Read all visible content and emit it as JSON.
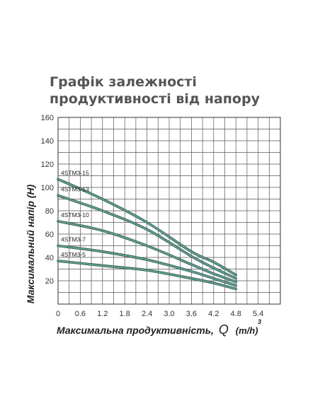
{
  "chart_data": {
    "type": "line",
    "title": "Графік залежності продуктивності від напору",
    "xlabel_main": "Максимальна продуктивність,",
    "xlabel_symbol": "Q",
    "xlabel_unit": "(m/h)",
    "xlabel_unit_sup": "3",
    "ylabel": "Максимальний напір (H)",
    "xlim": [
      0,
      6.0
    ],
    "ylim": [
      0,
      160
    ],
    "x_ticks": [
      0,
      0.6,
      1.2,
      1.8,
      2.4,
      3.0,
      3.6,
      4.2,
      4.8,
      5.4
    ],
    "x_tick_labels": [
      "0",
      "0.6",
      "1.2",
      "1.8",
      "2.4",
      "3.0",
      "3.6",
      "4.2",
      "4.8",
      "5.4"
    ],
    "y_ticks": [
      20,
      40,
      60,
      80,
      100,
      120,
      140,
      160
    ],
    "y_tick_labels": [
      "20",
      "40",
      "60",
      "80",
      "100",
      "120",
      "140",
      "160"
    ],
    "grid": true,
    "line_color": "#5f9e8f",
    "series": [
      {
        "name": "4STM3-15",
        "x": [
          0,
          1.2,
          2.4,
          3.6,
          4.2,
          4.8
        ],
        "y": [
          107,
          90,
          70,
          45,
          36,
          25
        ]
      },
      {
        "name": "4STM3-13",
        "x": [
          0,
          1.2,
          2.4,
          3.6,
          4.2,
          4.8
        ],
        "y": [
          93,
          80,
          64,
          41,
          31,
          22
        ]
      },
      {
        "name": "4STM3-10",
        "x": [
          0,
          1.2,
          2.4,
          3.6,
          4.2,
          4.8
        ],
        "y": [
          71,
          63,
          50,
          34,
          26,
          19
        ]
      },
      {
        "name": "4STM3-7",
        "x": [
          0,
          1.2,
          2.4,
          3.6,
          4.2,
          4.8
        ],
        "y": [
          50,
          45,
          38,
          28,
          22,
          16
        ]
      },
      {
        "name": "4STM3-5",
        "x": [
          0,
          1.2,
          2.4,
          3.6,
          4.2,
          4.8
        ],
        "y": [
          37,
          33,
          29,
          22,
          18,
          13
        ]
      }
    ]
  }
}
